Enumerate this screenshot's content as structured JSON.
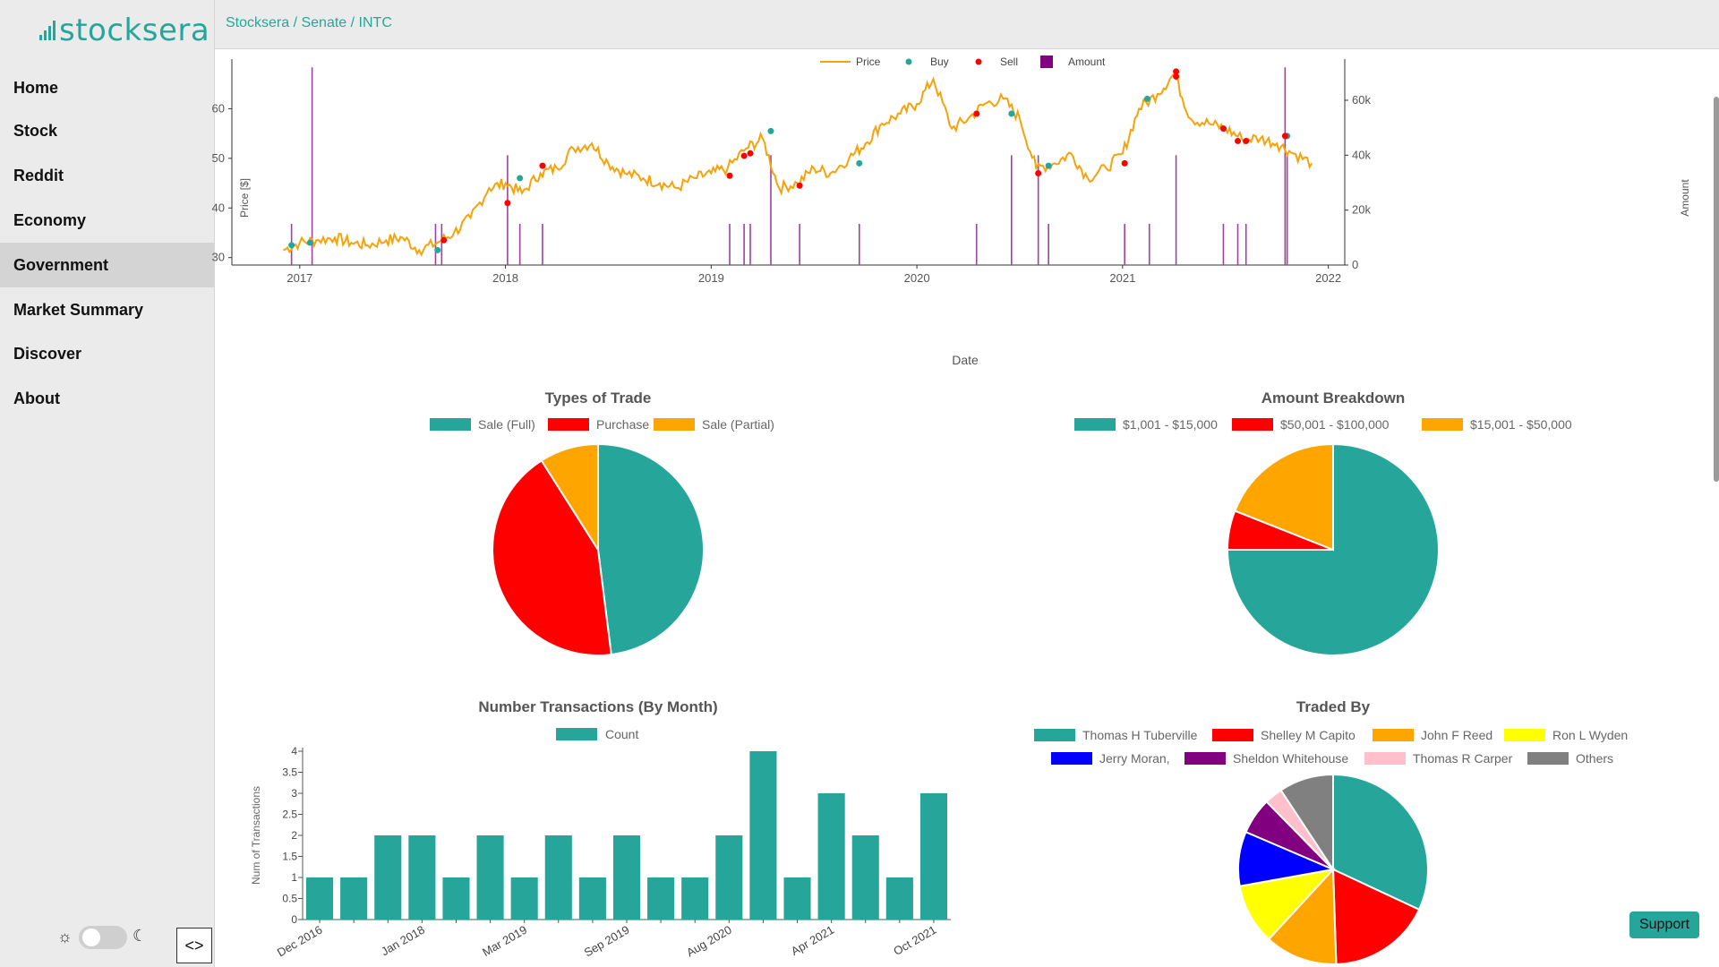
{
  "brand": "stocksera",
  "breadcrumb": [
    "Stocksera",
    "Senate",
    "INTC"
  ],
  "nav": [
    "Home",
    "Stock",
    "Reddit",
    "Economy",
    "Government",
    "Market Summary",
    "Discover",
    "About"
  ],
  "support_label": "Support",
  "theme": {
    "sun": "☼",
    "moon": "☾",
    "collapse": "<>"
  },
  "colors": {
    "teal": "#26a69a",
    "red": "#ff0000",
    "orange": "#ffa500",
    "purple": "#800080",
    "price": "#f5a30a"
  },
  "chart_data": [
    {
      "type": "line",
      "title": "",
      "legend": [
        "Price",
        "Buy",
        "Sell",
        "Amount"
      ],
      "legend_placement": "top-center",
      "xlabel": "Date",
      "ylabel": "Price [$]",
      "y2label": "Amount",
      "x_ticks": [
        "2017",
        "2018",
        "2019",
        "2020",
        "2021",
        "2022"
      ],
      "y_ticks": [
        30,
        40,
        50,
        60
      ],
      "y2_ticks": [
        "0",
        "20k",
        "40k",
        "60k"
      ],
      "ylim": [
        28.5,
        70
      ],
      "y2lim": [
        0,
        75000
      ],
      "xlim": [
        2016.67,
        2022.08
      ],
      "price": [
        [
          2016.92,
          31.5
        ],
        [
          2017.0,
          33
        ],
        [
          2017.08,
          33.5
        ],
        [
          2017.17,
          34
        ],
        [
          2017.25,
          33
        ],
        [
          2017.33,
          32.5
        ],
        [
          2017.42,
          33.5
        ],
        [
          2017.5,
          34
        ],
        [
          2017.58,
          31.5
        ],
        [
          2017.67,
          33
        ],
        [
          2017.75,
          35
        ],
        [
          2017.83,
          38
        ],
        [
          2017.92,
          44
        ],
        [
          2018.0,
          45
        ],
        [
          2018.08,
          43
        ],
        [
          2018.17,
          47
        ],
        [
          2018.25,
          48
        ],
        [
          2018.33,
          52
        ],
        [
          2018.42,
          53
        ],
        [
          2018.5,
          49
        ],
        [
          2018.58,
          47
        ],
        [
          2018.67,
          46
        ],
        [
          2018.75,
          45
        ],
        [
          2018.83,
          44
        ],
        [
          2018.92,
          46
        ],
        [
          2019.0,
          47
        ],
        [
          2019.08,
          48
        ],
        [
          2019.17,
          52
        ],
        [
          2019.25,
          54
        ],
        [
          2019.33,
          44
        ],
        [
          2019.42,
          45
        ],
        [
          2019.5,
          48
        ],
        [
          2019.58,
          47
        ],
        [
          2019.67,
          50
        ],
        [
          2019.75,
          53
        ],
        [
          2019.83,
          57
        ],
        [
          2019.92,
          59
        ],
        [
          2020.0,
          61
        ],
        [
          2020.08,
          66
        ],
        [
          2020.17,
          56
        ],
        [
          2020.25,
          58
        ],
        [
          2020.33,
          61
        ],
        [
          2020.42,
          62
        ],
        [
          2020.5,
          58
        ],
        [
          2020.58,
          48
        ],
        [
          2020.67,
          49
        ],
        [
          2020.75,
          51
        ],
        [
          2020.83,
          46
        ],
        [
          2020.92,
          48
        ],
        [
          2021.0,
          51
        ],
        [
          2021.08,
          60
        ],
        [
          2021.17,
          63
        ],
        [
          2021.25,
          67
        ],
        [
          2021.33,
          58
        ],
        [
          2021.42,
          57
        ],
        [
          2021.5,
          56
        ],
        [
          2021.58,
          54
        ],
        [
          2021.67,
          54
        ],
        [
          2021.75,
          53
        ],
        [
          2021.83,
          51
        ],
        [
          2021.92,
          49
        ]
      ],
      "buy": [
        [
          2016.96,
          32.5
        ],
        [
          2017.05,
          33
        ],
        [
          2017.67,
          31.5
        ],
        [
          2018.07,
          46
        ],
        [
          2019.29,
          55.5
        ],
        [
          2019.72,
          49
        ],
        [
          2020.46,
          59
        ],
        [
          2020.64,
          48.5
        ],
        [
          2021.12,
          62
        ],
        [
          2021.8,
          54.5
        ]
      ],
      "sell": [
        [
          2017.7,
          33.5
        ],
        [
          2018.01,
          41
        ],
        [
          2018.18,
          48.5
        ],
        [
          2019.09,
          46.5
        ],
        [
          2019.16,
          50.5
        ],
        [
          2019.19,
          51
        ],
        [
          2019.43,
          44.5
        ],
        [
          2020.29,
          59
        ],
        [
          2020.59,
          47
        ],
        [
          2021.01,
          49
        ],
        [
          2021.26,
          67.5
        ],
        [
          2021.26,
          66.5
        ],
        [
          2021.49,
          56
        ],
        [
          2021.56,
          53.5
        ],
        [
          2021.6,
          53.5
        ],
        [
          2021.79,
          54.5
        ]
      ],
      "amount": [
        [
          2016.96,
          15000
        ],
        [
          2017.06,
          72000
        ],
        [
          2017.66,
          15000
        ],
        [
          2017.69,
          15000
        ],
        [
          2018.01,
          40000
        ],
        [
          2018.07,
          15000
        ],
        [
          2018.18,
          15000
        ],
        [
          2019.09,
          15000
        ],
        [
          2019.16,
          15000
        ],
        [
          2019.19,
          15000
        ],
        [
          2019.29,
          40000
        ],
        [
          2019.43,
          15000
        ],
        [
          2019.72,
          15000
        ],
        [
          2020.29,
          15000
        ],
        [
          2020.46,
          40000
        ],
        [
          2020.59,
          40000
        ],
        [
          2020.64,
          15000
        ],
        [
          2021.01,
          15000
        ],
        [
          2021.13,
          15000
        ],
        [
          2021.26,
          40000
        ],
        [
          2021.49,
          15000
        ],
        [
          2021.56,
          15000
        ],
        [
          2021.6,
          15000
        ],
        [
          2021.79,
          72000
        ],
        [
          2021.8,
          40000
        ]
      ]
    },
    {
      "type": "pie",
      "title": "Types of Trade",
      "legend": [
        "Sale (Full)",
        "Purchase",
        "Sale (Partial)"
      ],
      "values": [
        48,
        43,
        9
      ],
      "colors": [
        "#26a69a",
        "#ff0000",
        "#ffa500"
      ]
    },
    {
      "type": "pie",
      "title": "Amount Breakdown",
      "legend": [
        "$1,001 - $15,000",
        "$50,001 - $100,000",
        "$15,001 - $50,000"
      ],
      "values": [
        75,
        6,
        19
      ],
      "colors": [
        "#26a69a",
        "#ff0000",
        "#ffa500"
      ]
    },
    {
      "type": "bar",
      "title": "Number Transactions (By Month)",
      "legend": [
        "Count"
      ],
      "ylabel": "Num of Transactions",
      "y_ticks": [
        "0",
        "0.5",
        "1",
        "1.5",
        "2",
        "2.5",
        "3",
        "3.5",
        "4"
      ],
      "ylim": [
        0,
        4
      ],
      "x_ticks": [
        "Dec 2016",
        "Jan 2018",
        "Mar 2019",
        "Sep 2019",
        "Aug 2020",
        "Apr 2021",
        "Oct 2021"
      ],
      "x_tick_positions": [
        0,
        3,
        6,
        9,
        12,
        15,
        18
      ],
      "values": [
        1,
        1,
        2,
        2,
        1,
        2,
        1,
        2,
        1,
        2,
        1,
        1,
        2,
        4,
        1,
        3,
        2,
        1,
        3
      ],
      "color": "#26a69a"
    },
    {
      "type": "pie",
      "title": "Traded By",
      "legend": [
        "Thomas H Tuberville",
        "Shelley M Capito",
        "John F Reed",
        "Ron L Wyden",
        "Jerry Moran,",
        "Sheldon Whitehouse",
        "Thomas R Carper",
        "Others"
      ],
      "values": [
        31,
        17,
        12,
        10,
        9,
        6,
        3,
        9
      ],
      "colors": [
        "#26a69a",
        "#ff0000",
        "#ffa500",
        "#ffff00",
        "#0000ff",
        "#800080",
        "#ffc0cb",
        "#808080"
      ]
    }
  ]
}
